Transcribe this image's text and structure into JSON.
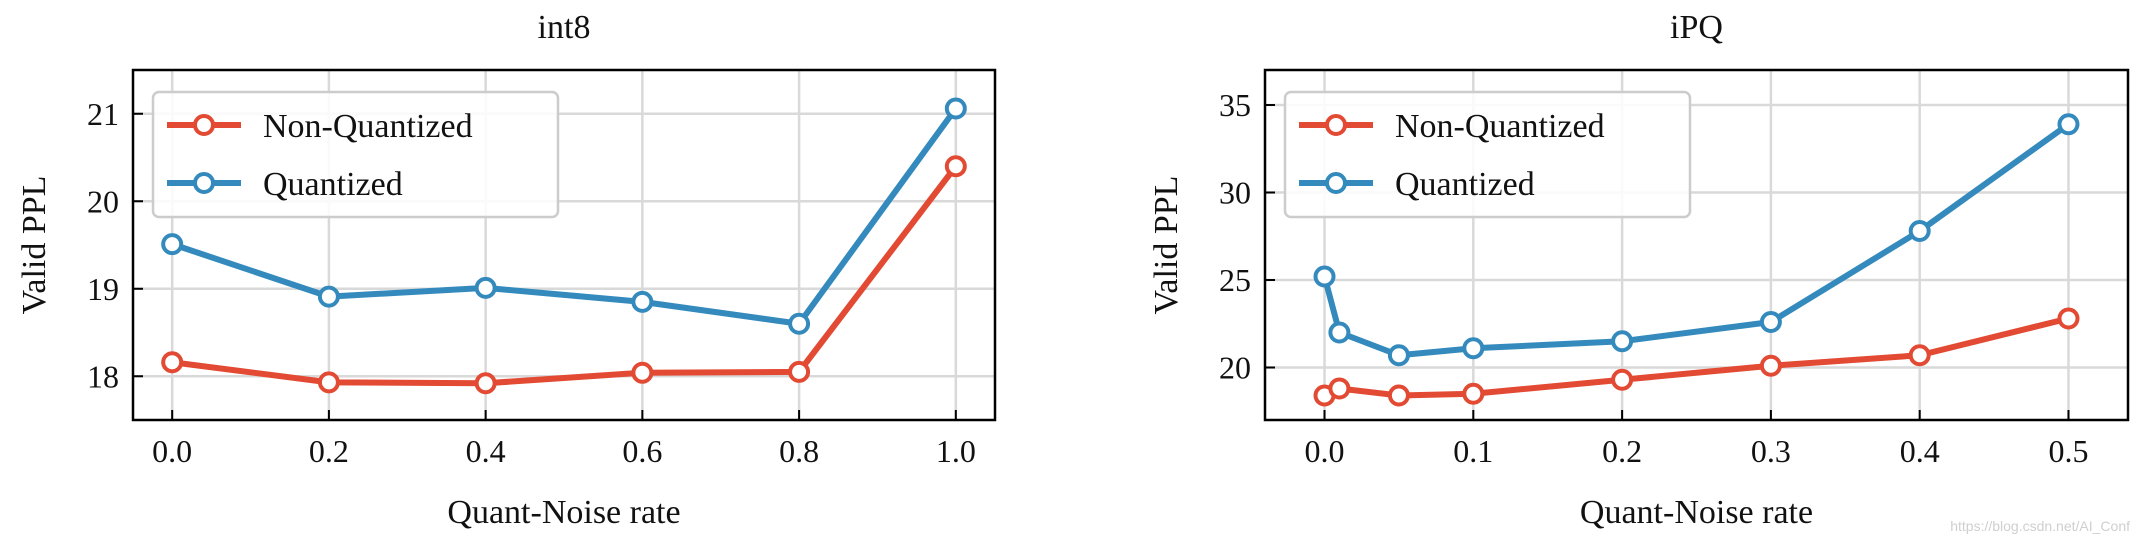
{
  "colors": {
    "non_quantized": "#E24A33",
    "quantized": "#348ABD",
    "grid": "#d9d9d9",
    "axis": "#000000"
  },
  "watermark": "https://blog.csdn.net/AI_Conf",
  "chart_data": [
    {
      "type": "line",
      "title": "int8",
      "xlabel": "Quant-Noise rate",
      "ylabel": "Valid PPL",
      "xlim": [
        -0.05,
        1.05
      ],
      "ylim": [
        17.5,
        21.5
      ],
      "xticks": [
        0.0,
        0.2,
        0.4,
        0.6,
        0.8,
        1.0
      ],
      "xtick_labels": [
        "0.0",
        "0.2",
        "0.4",
        "0.6",
        "0.8",
        "1.0"
      ],
      "yticks": [
        18,
        19,
        20,
        21
      ],
      "ytick_labels": [
        "18",
        "19",
        "20",
        "21"
      ],
      "grid": true,
      "legend_position": "top-left",
      "series": [
        {
          "name": "Non-Quantized",
          "color": "#E24A33",
          "x": [
            0.0,
            0.2,
            0.4,
            0.6,
            0.8,
            1.0
          ],
          "y": [
            18.16,
            17.93,
            17.92,
            18.04,
            18.05,
            20.4
          ]
        },
        {
          "name": "Quantized",
          "color": "#348ABD",
          "x": [
            0.0,
            0.2,
            0.4,
            0.6,
            0.8,
            1.0
          ],
          "y": [
            19.51,
            18.91,
            19.01,
            18.85,
            18.6,
            21.06
          ]
        }
      ]
    },
    {
      "type": "line",
      "title": "iPQ",
      "xlabel": "Quant-Noise rate",
      "ylabel": "Valid PPL",
      "xlim": [
        -0.04,
        0.54
      ],
      "ylim": [
        17,
        37
      ],
      "xticks": [
        0.0,
        0.1,
        0.2,
        0.3,
        0.4,
        0.5
      ],
      "xtick_labels": [
        "0.0",
        "0.1",
        "0.2",
        "0.3",
        "0.4",
        "0.5"
      ],
      "yticks": [
        20,
        25,
        30,
        35
      ],
      "ytick_labels": [
        "20",
        "25",
        "30",
        "35"
      ],
      "grid": true,
      "legend_position": "top-left",
      "series": [
        {
          "name": "Non-Quantized",
          "color": "#E24A33",
          "x": [
            0.0,
            0.01,
            0.05,
            0.1,
            0.2,
            0.3,
            0.4,
            0.5
          ],
          "y": [
            18.4,
            18.8,
            18.4,
            18.5,
            19.3,
            20.1,
            20.7,
            22.8
          ]
        },
        {
          "name": "Quantized",
          "color": "#348ABD",
          "x": [
            0.0,
            0.01,
            0.05,
            0.1,
            0.2,
            0.3,
            0.4,
            0.5
          ],
          "y": [
            25.2,
            22.0,
            20.7,
            21.1,
            21.5,
            22.6,
            27.8,
            33.9
          ]
        }
      ]
    }
  ]
}
